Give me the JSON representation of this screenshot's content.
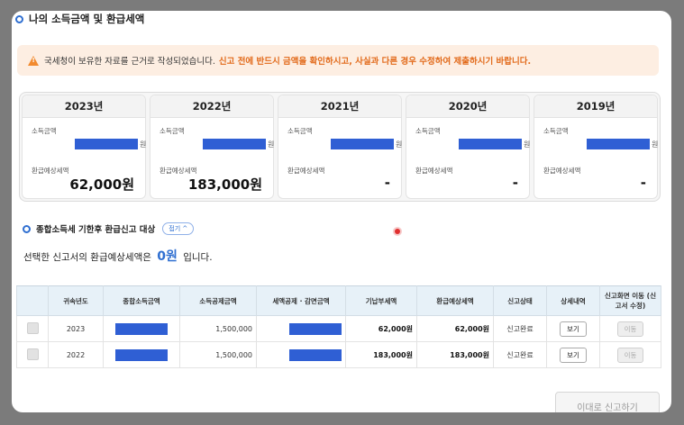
{
  "title": "나의 소득금액 및 환급세액",
  "notice": {
    "text": "국세청이 보유한 자료를 근거로 작성되었습니다.",
    "highlight": "신고 전에 반드시 금액을 확인하시고, 사실과 다른 경우 수정하여 제출하시기 바랍니다.",
    "icon": "warning-icon",
    "bg_color": "#fdeee2",
    "accent_color": "#e26a1a"
  },
  "years": [
    {
      "year": "2023년",
      "income_label": "소득금액",
      "won": "원",
      "refund_label": "환급예상세액",
      "refund": "62,000원"
    },
    {
      "year": "2022년",
      "income_label": "소득금액",
      "won": "원",
      "refund_label": "환급예상세액",
      "refund": "183,000원"
    },
    {
      "year": "2021년",
      "income_label": "소득금액",
      "won": "원",
      "refund_label": "환급예상세액",
      "refund": "-"
    },
    {
      "year": "2020년",
      "income_label": "소득금액",
      "won": "원",
      "refund_label": "환급예상세액",
      "refund": "-"
    },
    {
      "year": "2019년",
      "income_label": "소득금액",
      "won": "원",
      "refund_label": "환급예상세액",
      "refund": "-"
    }
  ],
  "section": {
    "title": "종합소득세 기한후 환급신고 대상",
    "fold_label": "접기 ^"
  },
  "summary": {
    "prefix": "선택한 신고서의 환급예상세액은",
    "amount": "0원",
    "suffix": "입니다."
  },
  "table": {
    "headers": [
      "",
      "귀속년도",
      "종합소득금액",
      "소득공제금액",
      "세액공제 · 감면금액",
      "기납부세액",
      "환급예상세액",
      "신고상태",
      "상세내역",
      "신고화면 이동 (신고서 수정)"
    ],
    "rows": [
      {
        "year": "2023",
        "deduction": "1,500,000",
        "prepaid": "62,000원",
        "refund": "62,000원",
        "status": "신고완료",
        "view": "보기",
        "move": "이동"
      },
      {
        "year": "2022",
        "deduction": "1,500,000",
        "prepaid": "183,000원",
        "refund": "183,000원",
        "status": "신고완료",
        "view": "보기",
        "move": "이동"
      }
    ]
  },
  "submit_label": "이대로 신고하기",
  "colors": {
    "primary": "#2f6fd1",
    "redaction": "#2f5fd4",
    "header_bg": "#e7f1f8"
  }
}
